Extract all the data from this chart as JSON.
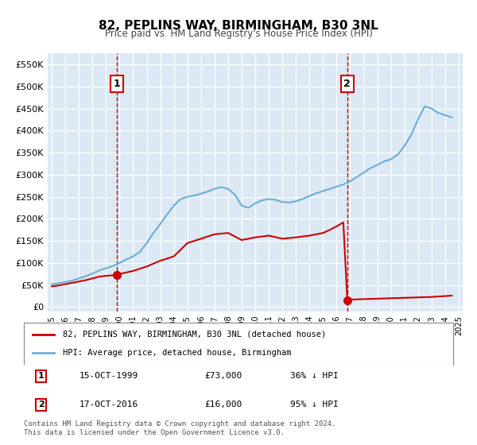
{
  "title": "82, PEPLINS WAY, BIRMINGHAM, B30 3NL",
  "subtitle": "Price paid vs. HM Land Registry's House Price Index (HPI)",
  "bg_color": "#dce9f5",
  "plot_bg_color": "#dce9f5",
  "hpi_color": "#6aaed6",
  "price_color": "#cc0000",
  "vline_color": "#cc0000",
  "marker_color": "#cc0000",
  "sale1_year": 1999.79,
  "sale1_price": 73000,
  "sale2_year": 2016.79,
  "sale2_price": 16000,
  "ylim_max": 575000,
  "ylim_min": -10000,
  "legend_label_price": "82, PEPLINS WAY, BIRMINGHAM, B30 3NL (detached house)",
  "legend_label_hpi": "HPI: Average price, detached house, Birmingham",
  "note1_label": "1",
  "note1_date": "15-OCT-1999",
  "note1_price": "£73,000",
  "note1_pct": "36% ↓ HPI",
  "note2_label": "2",
  "note2_date": "17-OCT-2016",
  "note2_price": "£16,000",
  "note2_pct": "95% ↓ HPI",
  "footer": "Contains HM Land Registry data © Crown copyright and database right 2024.\nThis data is licensed under the Open Government Licence v3.0."
}
